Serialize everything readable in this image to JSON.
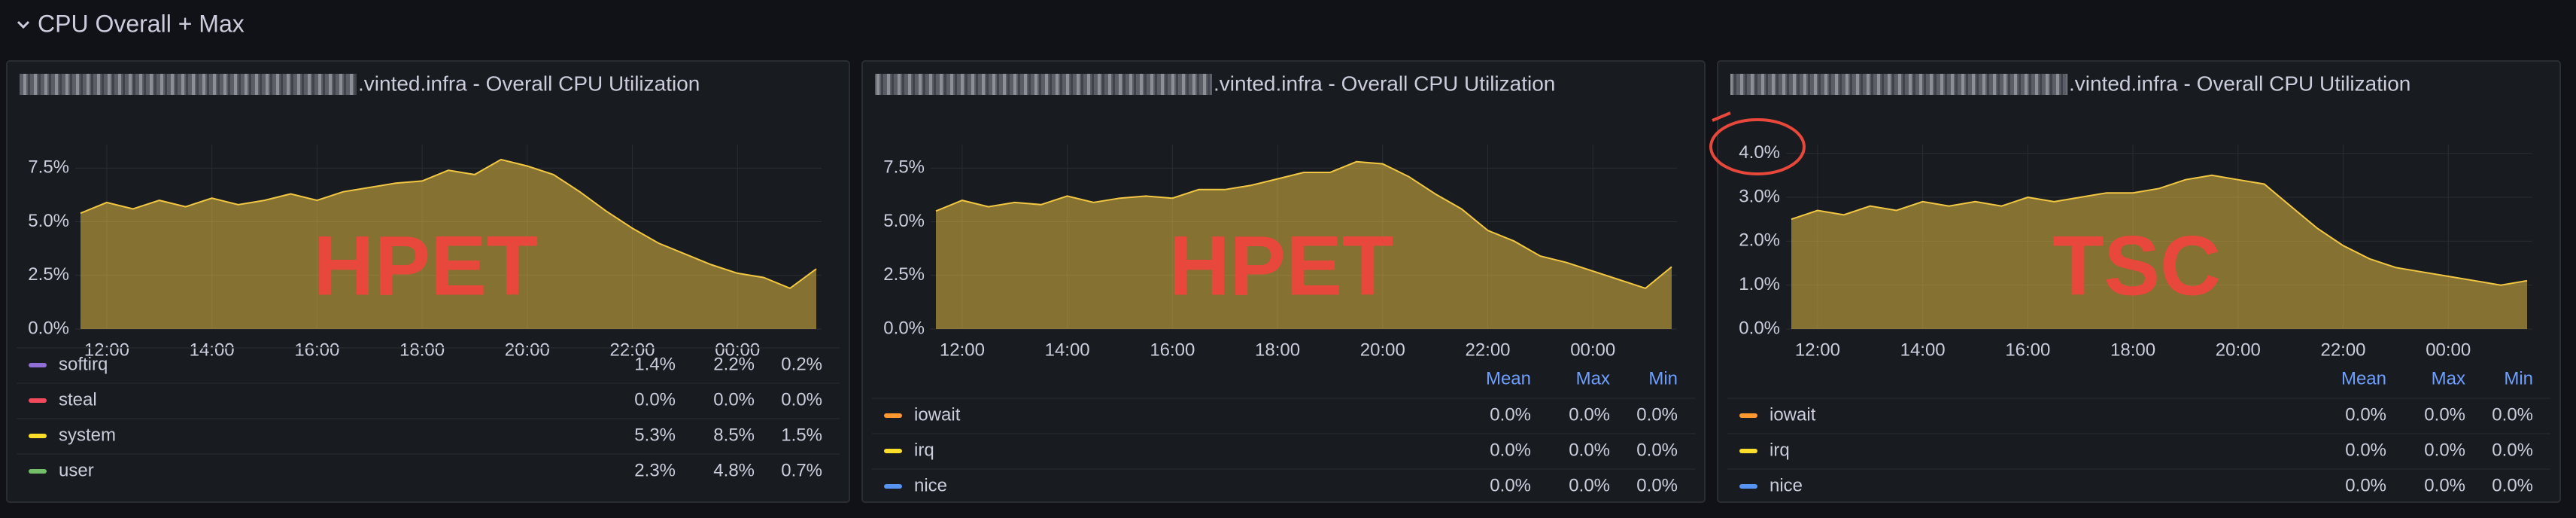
{
  "section_title": "CPU Overall + Max",
  "chart_data": [
    {
      "type": "area",
      "title": ".vinted.infra - Overall CPU Utilization",
      "annotation": "HPET",
      "color": "#f2c744",
      "x": [
        11.5,
        12,
        12.5,
        13,
        13.5,
        14,
        14.5,
        15,
        15.5,
        16,
        16.5,
        17,
        17.5,
        18,
        18.5,
        19,
        19.5,
        20,
        20.5,
        21,
        21.5,
        22,
        22.5,
        23,
        23.5,
        24,
        24.5,
        25,
        25.5
      ],
      "values": [
        5.4,
        5.9,
        5.6,
        6.0,
        5.7,
        6.1,
        5.8,
        6.0,
        6.3,
        6.0,
        6.4,
        6.6,
        6.8,
        6.9,
        7.4,
        7.2,
        7.9,
        7.6,
        7.2,
        6.4,
        5.5,
        4.7,
        4.0,
        3.5,
        3.0,
        2.6,
        2.4,
        1.9,
        2.8
      ],
      "xlim": [
        11.4,
        25.6
      ],
      "xticks": [
        {
          "value": 12,
          "label": "12:00"
        },
        {
          "value": 14,
          "label": "14:00"
        },
        {
          "value": 16,
          "label": "16:00"
        },
        {
          "value": 18,
          "label": "18:00"
        },
        {
          "value": 20,
          "label": "20:00"
        },
        {
          "value": 22,
          "label": "22:00"
        },
        {
          "value": 24,
          "label": "00:00"
        }
      ],
      "ylim": [
        0,
        8.6
      ],
      "yticks": [
        {
          "value": 0,
          "label": "0.0%"
        },
        {
          "value": 2.5,
          "label": "2.5%"
        },
        {
          "value": 5,
          "label": "5.0%"
        },
        {
          "value": 7.5,
          "label": "7.5%"
        }
      ],
      "grid": true,
      "legend": {
        "rows": [
          {
            "name": "softirq",
            "color": "#8f6fd6",
            "mean": "1.4%",
            "max": "2.2%",
            "min": "0.2%"
          },
          {
            "name": "steal",
            "color": "#f2495c",
            "mean": "0.0%",
            "max": "0.0%",
            "min": "0.0%"
          },
          {
            "name": "system",
            "color": "#fade2a",
            "mean": "5.3%",
            "max": "8.5%",
            "min": "1.5%"
          },
          {
            "name": "user",
            "color": "#73bf69",
            "mean": "2.3%",
            "max": "4.8%",
            "min": "0.7%"
          }
        ]
      }
    },
    {
      "type": "area",
      "title": ".vinted.infra - Overall CPU Utilization",
      "annotation": "HPET",
      "color": "#f2c744",
      "x": [
        11.5,
        12,
        12.5,
        13,
        13.5,
        14,
        14.5,
        15,
        15.5,
        16,
        16.5,
        17,
        17.5,
        18,
        18.5,
        19,
        19.5,
        20,
        20.5,
        21,
        21.5,
        22,
        22.5,
        23,
        23.5,
        24,
        24.5,
        25,
        25.5
      ],
      "values": [
        5.5,
        6.0,
        5.7,
        5.9,
        5.8,
        6.2,
        5.9,
        6.1,
        6.2,
        6.1,
        6.5,
        6.5,
        6.7,
        7.0,
        7.3,
        7.3,
        7.8,
        7.7,
        7.1,
        6.3,
        5.6,
        4.6,
        4.1,
        3.4,
        3.1,
        2.7,
        2.3,
        1.9,
        2.9
      ],
      "xlim": [
        11.4,
        25.6
      ],
      "xticks": [
        {
          "value": 12,
          "label": "12:00"
        },
        {
          "value": 14,
          "label": "14:00"
        },
        {
          "value": 16,
          "label": "16:00"
        },
        {
          "value": 18,
          "label": "18:00"
        },
        {
          "value": 20,
          "label": "20:00"
        },
        {
          "value": 22,
          "label": "22:00"
        },
        {
          "value": 24,
          "label": "00:00"
        }
      ],
      "ylim": [
        0,
        8.6
      ],
      "yticks": [
        {
          "value": 0,
          "label": "0.0%"
        },
        {
          "value": 2.5,
          "label": "2.5%"
        },
        {
          "value": 5,
          "label": "5.0%"
        },
        {
          "value": 7.5,
          "label": "7.5%"
        }
      ],
      "grid": true,
      "legend": {
        "columns": [
          "Mean",
          "Max",
          "Min"
        ],
        "rows": [
          {
            "name": "iowait",
            "color": "#ff9830",
            "mean": "0.0%",
            "max": "0.0%",
            "min": "0.0%"
          },
          {
            "name": "irq",
            "color": "#fade2a",
            "mean": "0.0%",
            "max": "0.0%",
            "min": "0.0%"
          },
          {
            "name": "nice",
            "color": "#5794f2",
            "mean": "0.0%",
            "max": "0.0%",
            "min": "0.0%"
          }
        ]
      }
    },
    {
      "type": "area",
      "title": ".vinted.infra - Overall CPU Utilization",
      "annotation": "TSC",
      "color": "#f2c744",
      "x": [
        11.5,
        12,
        12.5,
        13,
        13.5,
        14,
        14.5,
        15,
        15.5,
        16,
        16.5,
        17,
        17.5,
        18,
        18.5,
        19,
        19.5,
        20,
        20.5,
        21,
        21.5,
        22,
        22.5,
        23,
        23.5,
        24,
        24.5,
        25,
        25.5
      ],
      "values": [
        2.5,
        2.7,
        2.6,
        2.8,
        2.7,
        2.9,
        2.8,
        2.9,
        2.8,
        3.0,
        2.9,
        3.0,
        3.1,
        3.1,
        3.2,
        3.4,
        3.5,
        3.4,
        3.3,
        2.8,
        2.3,
        1.9,
        1.6,
        1.4,
        1.3,
        1.2,
        1.1,
        1.0,
        1.1
      ],
      "xlim": [
        11.4,
        25.6
      ],
      "xticks": [
        {
          "value": 12,
          "label": "12:00"
        },
        {
          "value": 14,
          "label": "14:00"
        },
        {
          "value": 16,
          "label": "16:00"
        },
        {
          "value": 18,
          "label": "18:00"
        },
        {
          "value": 20,
          "label": "20:00"
        },
        {
          "value": 22,
          "label": "22:00"
        },
        {
          "value": 24,
          "label": "00:00"
        }
      ],
      "ylim": [
        0,
        4.2
      ],
      "yticks": [
        {
          "value": 0,
          "label": "0.0%"
        },
        {
          "value": 1,
          "label": "1.0%"
        },
        {
          "value": 2,
          "label": "2.0%"
        },
        {
          "value": 3,
          "label": "3.0%"
        },
        {
          "value": 4,
          "label": "4.0%"
        }
      ],
      "grid": true,
      "legend": {
        "columns": [
          "Mean",
          "Max",
          "Min"
        ],
        "rows": [
          {
            "name": "iowait",
            "color": "#ff9830",
            "mean": "0.0%",
            "max": "0.0%",
            "min": "0.0%"
          },
          {
            "name": "irq",
            "color": "#fade2a",
            "mean": "0.0%",
            "max": "0.0%",
            "min": "0.0%"
          },
          {
            "name": "nice",
            "color": "#5794f2",
            "mean": "0.0%",
            "max": "0.0%",
            "min": "0.0%"
          }
        ]
      }
    }
  ]
}
